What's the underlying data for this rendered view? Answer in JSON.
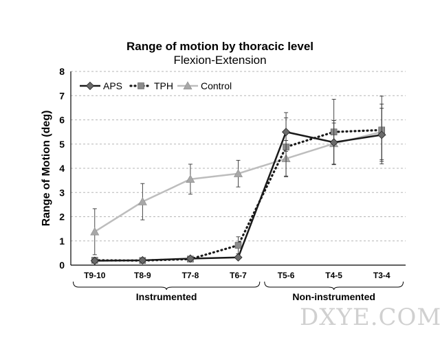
{
  "chart_data": {
    "type": "line",
    "title": "Range of motion by thoracic level",
    "subtitle": "Flexion-Extension",
    "ylabel": "Range of Motion (deg)",
    "xlabel": "",
    "ylim": [
      0,
      8
    ],
    "yticks": [
      0,
      1,
      2,
      3,
      4,
      5,
      6,
      7,
      8
    ],
    "grid": true,
    "legend_position": "top-left",
    "categories": [
      "T9-10",
      "T8-9",
      "T7-8",
      "T6-7",
      "T5-6",
      "T4-5",
      "T3-4"
    ],
    "groups": [
      {
        "label": "Instrumented",
        "categories": [
          "T9-10",
          "T8-9",
          "T7-8",
          "T6-7"
        ]
      },
      {
        "label": "Non-instrumented",
        "categories": [
          "T5-6",
          "T4-5",
          "T3-4"
        ]
      }
    ],
    "series": [
      {
        "name": "APS",
        "marker": "diamond",
        "line": "solid",
        "color": "#1a1a1a",
        "values": [
          0.18,
          0.2,
          0.27,
          0.32,
          5.5,
          5.07,
          5.38
        ],
        "errors": [
          null,
          null,
          null,
          null,
          0.8,
          0.9,
          1.1
        ]
      },
      {
        "name": "TPH",
        "marker": "square",
        "line": "dotted",
        "color": "#1a1a1a",
        "values": [
          0.2,
          0.19,
          0.25,
          0.82,
          4.88,
          5.5,
          5.58
        ],
        "errors": [
          null,
          null,
          null,
          0.35,
          1.2,
          1.35,
          1.4
        ]
      },
      {
        "name": "Control",
        "marker": "triangle",
        "line": "solid",
        "color": "#bdbdbd",
        "values": [
          1.38,
          2.62,
          3.55,
          3.78,
          4.4,
          5.02,
          5.5
        ],
        "errors": [
          0.95,
          0.75,
          0.62,
          0.55,
          0.75,
          0.85,
          1.15
        ]
      }
    ]
  },
  "watermark": "DXYE.COM"
}
